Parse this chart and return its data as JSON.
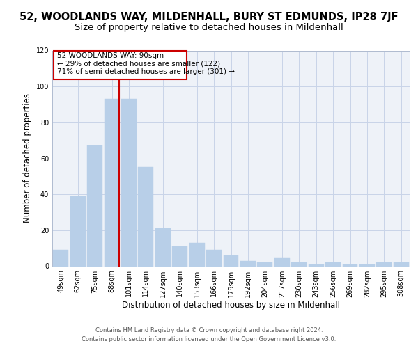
{
  "title1": "52, WOODLANDS WAY, MILDENHALL, BURY ST EDMUNDS, IP28 7JF",
  "title2": "Size of property relative to detached houses in Mildenhall",
  "xlabel": "Distribution of detached houses by size in Mildenhall",
  "ylabel": "Number of detached properties",
  "categories": [
    "49sqm",
    "62sqm",
    "75sqm",
    "88sqm",
    "101sqm",
    "114sqm",
    "127sqm",
    "140sqm",
    "153sqm",
    "166sqm",
    "179sqm",
    "192sqm",
    "204sqm",
    "217sqm",
    "230sqm",
    "243sqm",
    "256sqm",
    "269sqm",
    "282sqm",
    "295sqm",
    "308sqm"
  ],
  "values": [
    9,
    39,
    67,
    93,
    93,
    55,
    21,
    11,
    13,
    9,
    6,
    3,
    2,
    5,
    2,
    1,
    2,
    1,
    1,
    2,
    2
  ],
  "bar_color": "#b8cfe8",
  "bar_edgecolor": "#b8cfe8",
  "vline_color": "#cc0000",
  "vline_pos": 3.45,
  "annotation_line1": "52 WOODLANDS WAY: 90sqm",
  "annotation_line2": "← 29% of detached houses are smaller (122)",
  "annotation_line3": "71% of semi-detached houses are larger (301) →",
  "annotation_box_color": "#cc0000",
  "ylim": [
    0,
    120
  ],
  "yticks": [
    0,
    20,
    40,
    60,
    80,
    100,
    120
  ],
  "ax_facecolor": "#eef2f8",
  "grid_color": "#c8d4e8",
  "footer_line1": "Contains HM Land Registry data © Crown copyright and database right 2024.",
  "footer_line2": "Contains public sector information licensed under the Open Government Licence v3.0.",
  "title1_fontsize": 10.5,
  "title2_fontsize": 9.5,
  "xlabel_fontsize": 8.5,
  "ylabel_fontsize": 8.5,
  "tick_fontsize": 7,
  "annot_fontsize": 7.5,
  "footer_fontsize": 6
}
